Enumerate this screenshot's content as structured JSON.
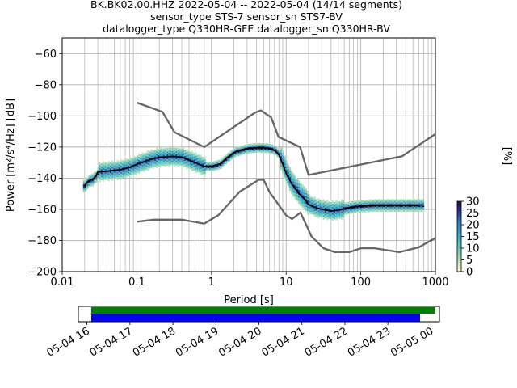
{
  "chart_data": [
    {
      "type": "heatmap",
      "title_lines": [
        "BK.BK02.00.HHZ   2022-05-04 -- 2022-05-04  (14/14 segments)",
        "sensor_type STS-7 sensor_sn STS7-BV",
        "datalogger_type Q330HR-GFE datalogger_sn Q330HR-BV"
      ],
      "xlabel": "Period [s]",
      "ylabel": "Power [m²/s⁴/Hz] [dB]",
      "x_scale": "log",
      "xlim": [
        0.01,
        1000
      ],
      "ylim": [
        -200,
        -50
      ],
      "x_tick_labels": [
        "0.01",
        "0.1",
        "1",
        "10",
        "100",
        "1000"
      ],
      "y_ticks": [
        -200,
        -180,
        -160,
        -140,
        -120,
        -100,
        -80,
        -60
      ],
      "grid": true,
      "colorbar": {
        "label": "[%]",
        "range": [
          0,
          30
        ],
        "ticks": [
          0,
          5,
          10,
          15,
          20,
          25,
          30
        ]
      },
      "series": [
        {
          "role": "high-noise-model",
          "color": "#666666",
          "x": [
            0.1,
            0.22,
            0.32,
            0.8,
            3.8,
            4.6,
            6.3,
            7.9,
            15.4,
            20,
            354.8,
            10000
          ],
          "y": [
            -91.5,
            -97.4,
            -110.5,
            -120,
            -98,
            -96.5,
            -101,
            -113.5,
            -120,
            -138,
            -126,
            -80
          ]
        },
        {
          "role": "low-noise-model",
          "color": "#666666",
          "x": [
            0.1,
            0.17,
            0.4,
            0.8,
            1.24,
            2.4,
            4.3,
            5,
            6,
            10,
            12,
            15.6,
            21.9,
            31.6,
            45,
            70,
            101,
            154,
            328,
            600,
            10000
          ],
          "y": [
            -168,
            -166.7,
            -166.7,
            -169.2,
            -163.7,
            -148.6,
            -141.1,
            -141.1,
            -149,
            -163.8,
            -166.2,
            -162.1,
            -177.5,
            -185,
            -187.5,
            -187.5,
            -185,
            -185,
            -187.5,
            -184.4,
            -151.5
          ]
        },
        {
          "role": "mode",
          "color": "#000000",
          "x": [
            0.02,
            0.022,
            0.025,
            0.028,
            0.03,
            0.04,
            0.06,
            0.08,
            0.1,
            0.15,
            0.2,
            0.3,
            0.4,
            0.6,
            0.8,
            1.0,
            1.3,
            1.6,
            2.0,
            2.5,
            3.0,
            4.0,
            5.0,
            6.0,
            7.0,
            8.0,
            9.0,
            10,
            12,
            15,
            18,
            20,
            25,
            30,
            40,
            50,
            60,
            80,
            100,
            150,
            200,
            300,
            400,
            600
          ],
          "y": [
            -145,
            -142,
            -141,
            -139,
            -136,
            -135.5,
            -134.5,
            -133,
            -131,
            -128,
            -126.5,
            -126,
            -126.5,
            -130,
            -132.5,
            -132.5,
            -131,
            -127,
            -123.5,
            -122,
            -121,
            -120.5,
            -120.5,
            -121,
            -122,
            -125,
            -131,
            -137,
            -144,
            -150,
            -154,
            -157,
            -159,
            -160,
            -161,
            -160.5,
            -159.5,
            -158.5,
            -158,
            -157.5,
            -157.5,
            -157.5,
            -157.5,
            -157.5
          ]
        }
      ],
      "timeline": {
        "x_tick_labels": [
          "05-04 16",
          "05-04 17",
          "05-04 18",
          "05-04 19",
          "05-04 20",
          "05-04 21",
          "05-04 22",
          "05-04 23",
          "05-05 00"
        ],
        "tick_hours": [
          16,
          17,
          18,
          19,
          20,
          21,
          22,
          23,
          24
        ],
        "xlim_hours": [
          15.8,
          24.2
        ],
        "bars": [
          {
            "name": "available data",
            "color": "#008000",
            "start_hour": 16.1,
            "end_hour": 24.1
          },
          {
            "name": "PSD segments",
            "color": "#0000ff",
            "start_hour": 16.1,
            "end_hour": 23.75
          }
        ]
      }
    }
  ]
}
